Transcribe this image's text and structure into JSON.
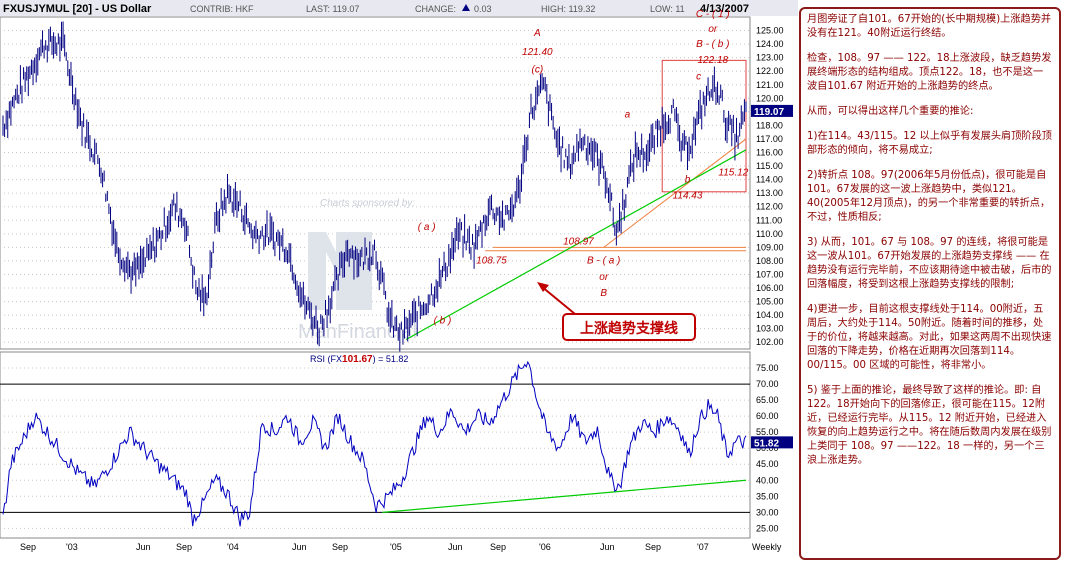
{
  "header": {
    "symbol": "FXUSJYMUL [20] - US Dollar",
    "contrib": "CONTRIB: HKF",
    "last": "LAST: 119.07",
    "change_label": "CHANGE:",
    "change_value": "0.03",
    "high": "HIGH: 119.32",
    "low": "LOW: 11",
    "date": "4/13/2007"
  },
  "colors": {
    "price": "#000080",
    "rsi": "#0000c0",
    "support": "#00cc00",
    "accent": "#c00000",
    "orange": "#f08040",
    "grid": "#c8c8c8"
  },
  "chart_data": [
    {
      "type": "line",
      "subtype": "ohlc-weekly",
      "title": "FXUSJYMUL [20] - US Dollar",
      "ylim": [
        101.5,
        126
      ],
      "yticks": [
        102,
        103,
        104,
        105,
        106,
        107,
        108,
        109,
        110,
        111,
        112,
        113,
        114,
        115,
        116,
        117,
        118,
        119,
        120,
        121,
        122,
        123,
        124,
        125
      ],
      "xticks": [
        "Sep",
        "'03",
        "Jun",
        "Sep",
        "'04",
        "Jun",
        "Sep",
        "'05",
        "Jun",
        "Sep",
        "'06",
        "Jun",
        "Sep",
        "'07"
      ],
      "xaxis_label": "Weekly",
      "last_value": "119.07",
      "anchors": [
        {
          "w": 0,
          "v": 118
        },
        {
          "w": 8,
          "v": 120
        },
        {
          "w": 17,
          "v": 122
        },
        {
          "w": 26,
          "v": 124
        },
        {
          "w": 38,
          "v": 124
        },
        {
          "w": 50,
          "v": 118
        },
        {
          "w": 62,
          "v": 115
        },
        {
          "w": 72,
          "v": 109
        },
        {
          "w": 82,
          "v": 107
        },
        {
          "w": 90,
          "v": 108
        },
        {
          "w": 100,
          "v": 110
        },
        {
          "w": 108,
          "v": 112
        },
        {
          "w": 115,
          "v": 111
        },
        {
          "w": 122,
          "v": 106
        },
        {
          "w": 128,
          "v": 105
        },
        {
          "w": 135,
          "v": 111
        },
        {
          "w": 142,
          "v": 113
        },
        {
          "w": 150,
          "v": 112
        },
        {
          "w": 158,
          "v": 110
        },
        {
          "w": 168,
          "v": 110
        },
        {
          "w": 180,
          "v": 109
        },
        {
          "w": 190,
          "v": 105
        },
        {
          "w": 200,
          "v": 103
        },
        {
          "w": 210,
          "v": 106
        },
        {
          "w": 218,
          "v": 109
        },
        {
          "w": 226,
          "v": 108
        },
        {
          "w": 235,
          "v": 109
        },
        {
          "w": 245,
          "v": 103.5
        },
        {
          "w": 252,
          "v": 102.5
        },
        {
          "w": 258,
          "v": 103.5
        },
        {
          "w": 268,
          "v": 105
        },
        {
          "w": 278,
          "v": 107
        },
        {
          "w": 288,
          "v": 110
        },
        {
          "w": 298,
          "v": 109
        },
        {
          "w": 308,
          "v": 112
        },
        {
          "w": 318,
          "v": 111
        },
        {
          "w": 326,
          "v": 113
        },
        {
          "w": 334,
          "v": 119
        },
        {
          "w": 342,
          "v": 121
        },
        {
          "w": 350,
          "v": 117
        },
        {
          "w": 358,
          "v": 115
        },
        {
          "w": 366,
          "v": 117
        },
        {
          "w": 374,
          "v": 116
        },
        {
          "w": 382,
          "v": 114
        },
        {
          "w": 388,
          "v": 110
        },
        {
          "w": 394,
          "v": 113
        },
        {
          "w": 400,
          "v": 116
        },
        {
          "w": 408,
          "v": 116
        },
        {
          "w": 416,
          "v": 118
        },
        {
          "w": 424,
          "v": 119
        },
        {
          "w": 430,
          "v": 116
        },
        {
          "w": 436,
          "v": 117
        },
        {
          "w": 444,
          "v": 120
        },
        {
          "w": 452,
          "v": 121
        },
        {
          "w": 458,
          "v": 118
        },
        {
          "w": 464,
          "v": 117
        },
        {
          "w": 470,
          "v": 119
        }
      ],
      "annotations": [
        {
          "label": "A",
          "w": 338,
          "v": 124.6
        },
        {
          "label": "121.40",
          "w": 338,
          "v": 123.2
        },
        {
          "label": "(c)",
          "w": 338,
          "v": 121.9
        },
        {
          "label": "C - ( 1 )",
          "w": 449,
          "v": 126
        },
        {
          "label": "or",
          "w": 449,
          "v": 124.9
        },
        {
          "label": "B - ( b )",
          "w": 449,
          "v": 123.8
        },
        {
          "label": "122.18",
          "w": 449,
          "v": 122.6
        },
        {
          "label": "c",
          "w": 440,
          "v": 121.4
        },
        {
          "label": "a",
          "w": 395,
          "v": 118.6
        },
        {
          "label": "b",
          "w": 433,
          "v": 113.8
        },
        {
          "label": "114.43",
          "w": 433,
          "v": 112.6
        },
        {
          "label": "115.12",
          "w": 462,
          "v": 114.3
        },
        {
          "label": "( a )",
          "w": 268,
          "v": 110.3
        },
        {
          "label": "( b )",
          "w": 278,
          "v": 103.4
        },
        {
          "label": "108.75",
          "w": 309,
          "v": 107.8
        },
        {
          "label": "108.97",
          "w": 364,
          "v": 109.2
        },
        {
          "label": "B - ( a )",
          "w": 380,
          "v": 107.8
        },
        {
          "label": "or",
          "w": 380,
          "v": 106.6
        },
        {
          "label": "B",
          "w": 380,
          "v": 105.4
        }
      ],
      "callout": "上涨趋势支撑线",
      "watermark": "Charts sponsored by:",
      "sponsor": "ManFinancial"
    },
    {
      "type": "line",
      "title": "RSI (FX",
      "title_value": "101.67",
      "title_suffix": ") = 51.82",
      "ylim": [
        22,
        80
      ],
      "yticks": [
        25,
        30,
        35,
        40,
        45,
        50,
        55,
        60,
        65,
        70,
        75
      ],
      "hlines": [
        30,
        70
      ],
      "last_value": "51.82",
      "anchors": [
        {
          "w": 0,
          "v": 28
        },
        {
          "w": 5,
          "v": 45
        },
        {
          "w": 12,
          "v": 52
        },
        {
          "w": 20,
          "v": 60
        },
        {
          "w": 28,
          "v": 55
        },
        {
          "w": 38,
          "v": 48
        },
        {
          "w": 48,
          "v": 42
        },
        {
          "w": 58,
          "v": 38
        },
        {
          "w": 68,
          "v": 45
        },
        {
          "w": 80,
          "v": 55
        },
        {
          "w": 92,
          "v": 48
        },
        {
          "w": 104,
          "v": 42
        },
        {
          "w": 116,
          "v": 36
        },
        {
          "w": 120,
          "v": 28
        },
        {
          "w": 126,
          "v": 32
        },
        {
          "w": 134,
          "v": 40
        },
        {
          "w": 142,
          "v": 36
        },
        {
          "w": 150,
          "v": 28
        },
        {
          "w": 156,
          "v": 30
        },
        {
          "w": 164,
          "v": 58
        },
        {
          "w": 172,
          "v": 55
        },
        {
          "w": 180,
          "v": 60
        },
        {
          "w": 188,
          "v": 52
        },
        {
          "w": 196,
          "v": 58
        },
        {
          "w": 204,
          "v": 50
        },
        {
          "w": 212,
          "v": 60
        },
        {
          "w": 220,
          "v": 52
        },
        {
          "w": 228,
          "v": 46
        },
        {
          "w": 236,
          "v": 32
        },
        {
          "w": 244,
          "v": 35
        },
        {
          "w": 252,
          "v": 40
        },
        {
          "w": 260,
          "v": 50
        },
        {
          "w": 268,
          "v": 60
        },
        {
          "w": 276,
          "v": 55
        },
        {
          "w": 284,
          "v": 62
        },
        {
          "w": 292,
          "v": 55
        },
        {
          "w": 300,
          "v": 60
        },
        {
          "w": 308,
          "v": 58
        },
        {
          "w": 316,
          "v": 65
        },
        {
          "w": 324,
          "v": 72
        },
        {
          "w": 332,
          "v": 78
        },
        {
          "w": 338,
          "v": 65
        },
        {
          "w": 344,
          "v": 55
        },
        {
          "w": 352,
          "v": 50
        },
        {
          "w": 360,
          "v": 60
        },
        {
          "w": 368,
          "v": 52
        },
        {
          "w": 376,
          "v": 56
        },
        {
          "w": 384,
          "v": 40
        },
        {
          "w": 390,
          "v": 38
        },
        {
          "w": 396,
          "v": 50
        },
        {
          "w": 404,
          "v": 58
        },
        {
          "w": 412,
          "v": 55
        },
        {
          "w": 420,
          "v": 60
        },
        {
          "w": 428,
          "v": 56
        },
        {
          "w": 434,
          "v": 48
        },
        {
          "w": 440,
          "v": 58
        },
        {
          "w": 446,
          "v": 63
        },
        {
          "w": 452,
          "v": 60
        },
        {
          "w": 458,
          "v": 48
        },
        {
          "w": 464,
          "v": 52
        },
        {
          "w": 470,
          "v": 51.82
        }
      ]
    }
  ],
  "commentary": [
    "月图旁证了自101。67开始的(长中期规模)上涨趋势并没有在121。40附近运行终结。",
    "检查，108。97 —— 122。18上涨波段，缺乏趋势发展终端形态的结构组成。顶点122。18，也不是这一波自101.67 附近开始的上涨趋势的终点。",
    "从而，可以得出这样几个重要的推论:",
    "1)在114。43/115。12 以上似乎有发展头肩顶阶段顶部形态的倾向，将不易成立;",
    "2)转折点 108。97(2006年5月份低点)，很可能是自101。67发展的这一波上涨趋势中，类似121。40(2005年12月顶点)，的另一个非常重要的转折点，不过，性质相反;",
    "3) 从而，101。67 与 108。97 的连线，将很可能是这一波从101。67开始发展的上涨趋势支撑线 —— 在趋势没有运行完毕前，不应该期待途中被击破，后市的回落幅度，将受到这根上涨趋势支撑线的限制;",
    "4)更进一步，目前这根支撑线处于114。00附近，五周后，大约处于114。50附近。随着时间的推移，处于的价位，将越来越高。对此，如果这两周不出现快速回落的下降走势，价格在近期再次回落到114。00/115。00 区域的可能性，将非常小。",
    "5) 鉴于上面的推论，最终导致了这样的推论。即: 自122。18开始向下的回落修正，很可能在115。12附近，已经运行完毕。从115。12 附近开始，已经进入恢复的向上趋势运行之中。将在随后数周内发展在级别上类同于 108。97 ——122。18 一样的，另一个三浪上涨走势。"
  ]
}
